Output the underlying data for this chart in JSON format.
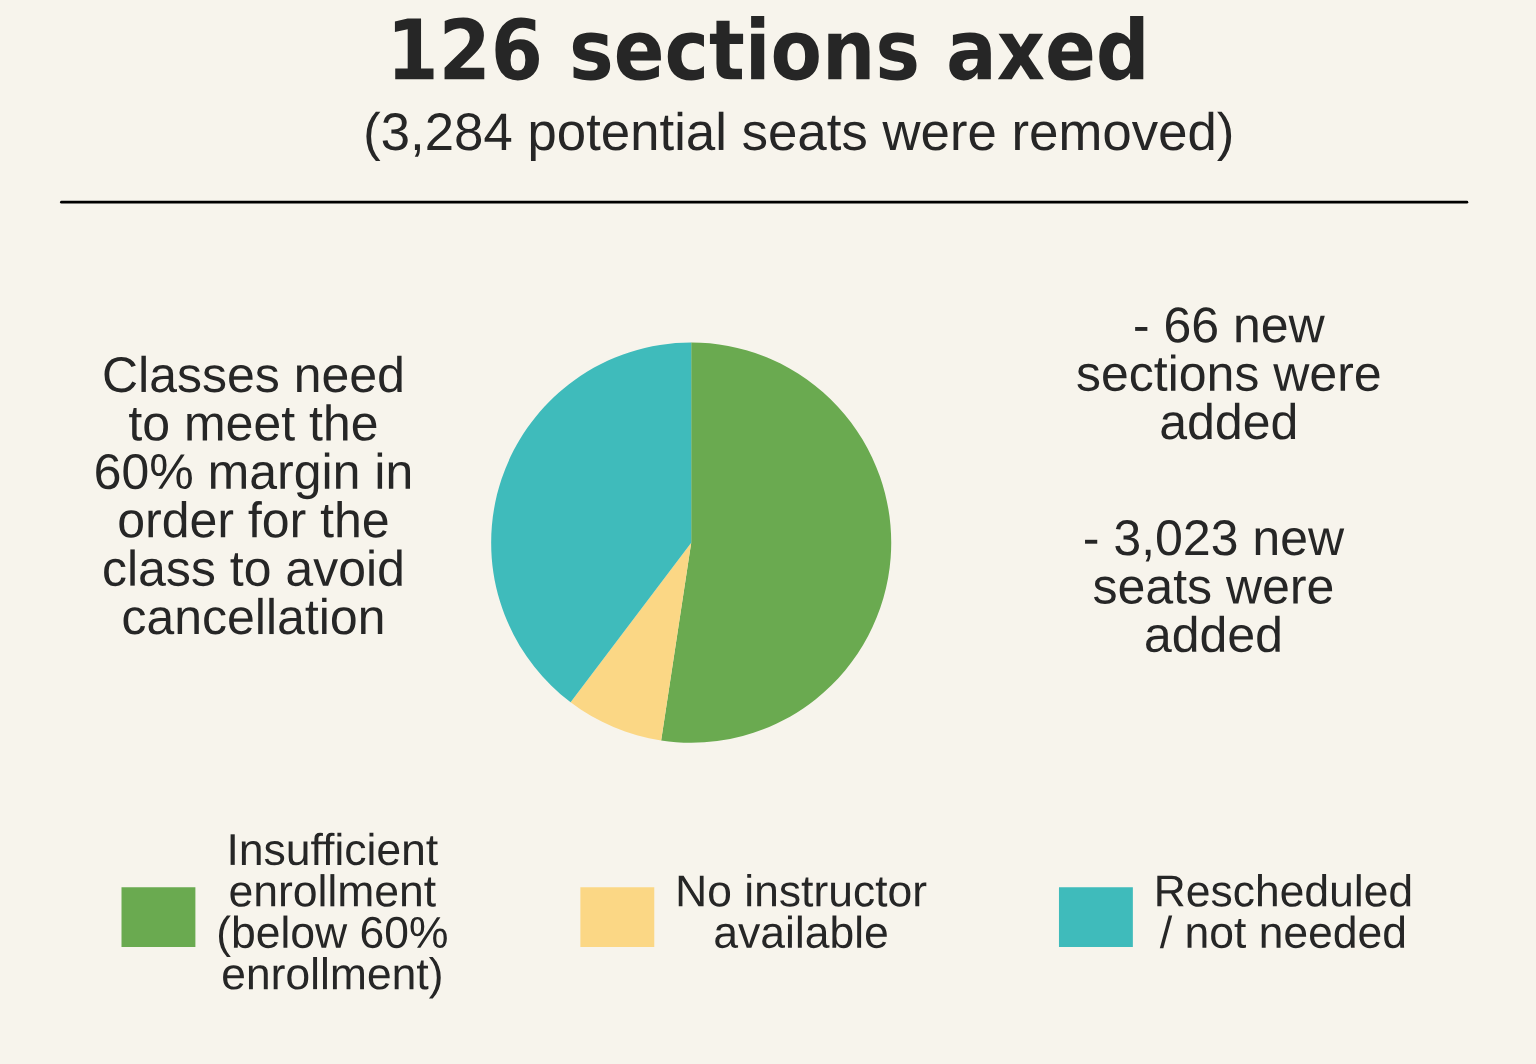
{
  "chart_data": {
    "type": "pie",
    "title": "126 sections axed",
    "subtitle": "(3,284 potential seats were removed)",
    "categories": [
      "Insufficient\nenrollment\n(below 60%\nenrollment)",
      "No instructor\navailable",
      "Rescheduled\n/ not needed"
    ],
    "values": [
      52.4,
      7.9,
      39.7
    ],
    "colors": [
      "#6aaa50",
      "#fbd785",
      "#3fbbbb"
    ],
    "annotations": [
      "Classes need\nto meet the\n60% margin in\norder for the\nclass to avoid\ncancellation",
      "- 66 new\nsections were\nadded",
      "- 3,023 new\nseats were\nadded"
    ],
    "legend": "bottom"
  }
}
